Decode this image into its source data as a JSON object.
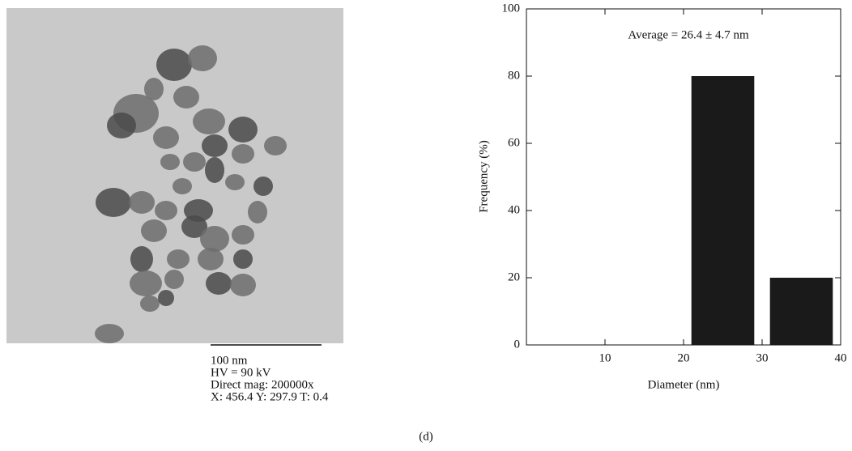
{
  "chart_data": {
    "type": "histogram",
    "annotation": "Average = 26.4 ± 4.7 nm",
    "xlabel": "Diameter (nm)",
    "ylabel": "Frequency (%)",
    "bins": [
      20,
      30,
      40
    ],
    "values": [
      80,
      20
    ],
    "color": "#1a1a1a",
    "xlim": [
      0,
      40
    ],
    "xticks": [
      10,
      20,
      30,
      40
    ],
    "ylim": [
      0,
      100
    ],
    "yticks": [
      0,
      20,
      40,
      60,
      80,
      100
    ]
  },
  "image": {
    "scale_bar": "100 nm",
    "caption": [
      "HV = 90 kV",
      "Direct mag: 200000x",
      "X: 456.4 Y: 297.9 T: 0.4"
    ]
  },
  "panel_label": "(d)"
}
